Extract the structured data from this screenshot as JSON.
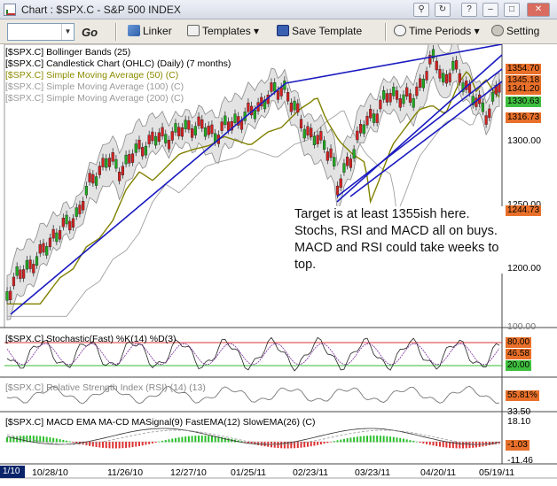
{
  "window": {
    "title": "Chart : $SPX.C - S&P 500 INDEX"
  },
  "toolbar": {
    "symbol_value": "",
    "go_label": "Go",
    "linker_label": "Linker",
    "templates_label": "Templates",
    "save_template_label": "Save Template",
    "time_periods_label": "Time Periods",
    "settings_label": "Setting"
  },
  "price_panel": {
    "headers": [
      {
        "text": "[$SPX.C] Bollinger Bands (25)",
        "color": "#000000"
      },
      {
        "text": "[$SPX.C] Candlestick Chart (OHLC) (Daily) (7 months)",
        "color": "#000000"
      },
      {
        "text": "[$SPX.C] Simple Moving Average (50) (C)",
        "color": "#8c8c00"
      },
      {
        "text": "[$SPX.C] Simple Moving Average (100) (C)",
        "color": "#9a9a9a"
      },
      {
        "text": "[$SPX.C] Simple Moving Average (200) (C)",
        "color": "#9a9a9a"
      }
    ],
    "axis_ticks": [
      "1300.00",
      "1250.00",
      "1200.00"
    ],
    "value_tags": [
      {
        "text": "1354.70",
        "color": "#e8702a"
      },
      {
        "text": "1345.18",
        "color": "#e8702a"
      },
      {
        "text": "1341.20",
        "color": "#e8702a"
      },
      {
        "text": "1330.63",
        "color": "#3fbf3f"
      },
      {
        "text": "1316.73",
        "color": "#e8702a"
      },
      {
        "text": "1244.73",
        "color": "#e8702a"
      }
    ]
  },
  "annotation": {
    "text": "Target is at least 1355ish here. Stochs, RSI and MACD all on buys.  MACD and RSI could take weeks to top."
  },
  "stochastic_panel": {
    "header": "[$SPX.C] Stochastic(Fast) %K(14) %D(3)",
    "axis_top": "100.00",
    "tags": [
      {
        "text": "80.00",
        "color": "#e8702a"
      },
      {
        "text": "46.58",
        "color": "#e8702a"
      },
      {
        "text": "20.00",
        "color": "#3fbf3f"
      }
    ]
  },
  "rsi_panel": {
    "header": "[$SPX.C] Relative Strength Index (RSI) (14) (13)",
    "tag": {
      "text": "55.81%",
      "color": "#e8702a"
    },
    "axis_low": "33.50"
  },
  "macd_panel": {
    "header": "[$SPX.C] MACD EMA MA-CD MASignal(9) FastEMA(12) SlowEMA(26) (C)",
    "axis_top": "18.10",
    "tag": {
      "text": "-1.03",
      "color": "#e8702a"
    },
    "axis_low": "-11.46"
  },
  "x_axis": {
    "scroll_label": "1/10",
    "labels": [
      "10/28/10",
      "11/26/10",
      "12/27/10",
      "01/25/11",
      "02/23/11",
      "03/23/11",
      "04/20/11",
      "05/19/11"
    ]
  }
}
